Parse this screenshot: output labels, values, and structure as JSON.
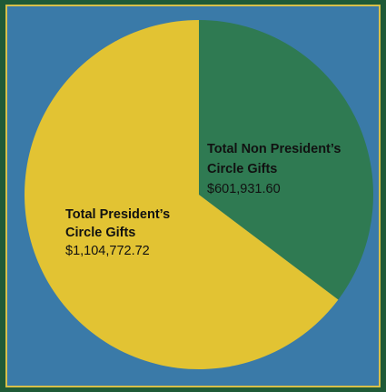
{
  "chart_data": {
    "type": "pie",
    "slices": [
      {
        "label_lines": [
          "Total Non President’s",
          "Circle Gifts"
        ],
        "value": 601931.6,
        "value_label": "$601,931.60",
        "color": "#2f7a52"
      },
      {
        "label_lines": [
          "Total President’s",
          "Circle Gifts"
        ],
        "value": 1104772.72,
        "value_label": "$1,104,772.72",
        "color": "#e2c333"
      }
    ],
    "start": "12 o'clock",
    "direction": "clockwise",
    "legend": "none"
  },
  "colors": {
    "background": "#3a7aa8",
    "frame": "#1f5a37",
    "border": "#d7c04a"
  }
}
